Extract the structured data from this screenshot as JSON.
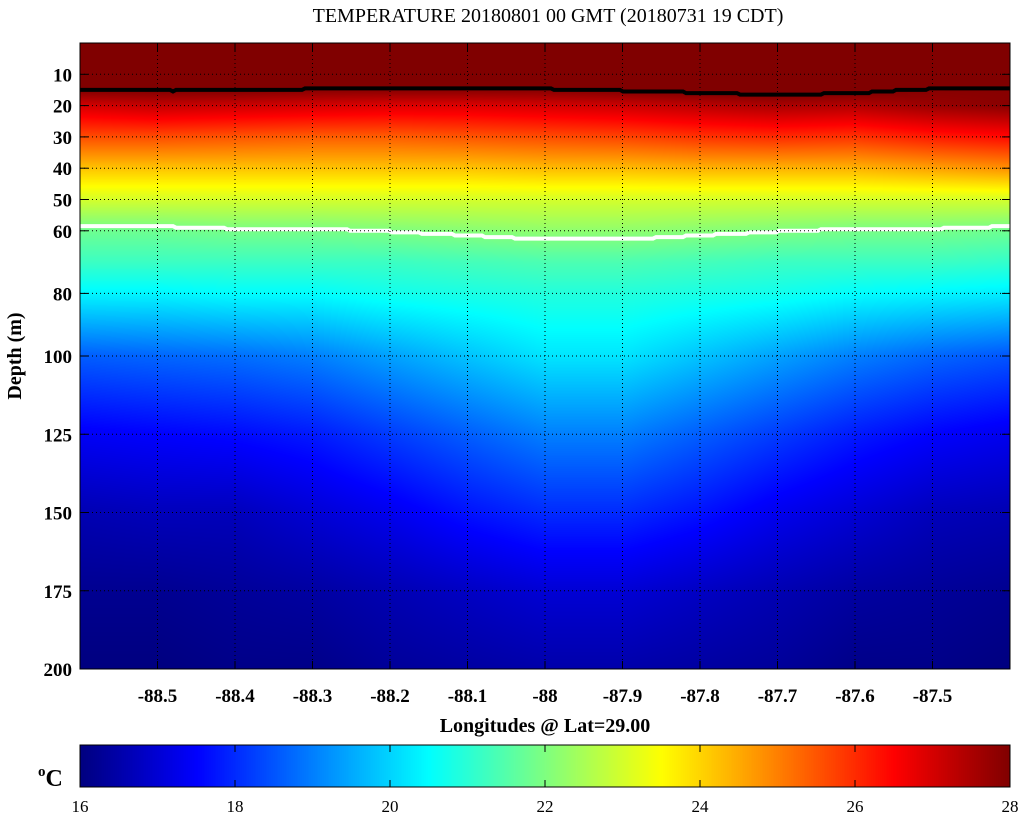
{
  "chart_data": {
    "type": "heatmap",
    "title": "TEMPERATURE 20180801 00 GMT (20180731 19 CDT)",
    "xlabel": "Longitudes @ Lat=29.00",
    "ylabel": "Depth (m)",
    "xlim": [
      -88.6,
      -87.4
    ],
    "ylim": [
      0,
      200
    ],
    "y_reversed": true,
    "grid": true,
    "xticks": [
      -88.5,
      -88.4,
      -88.3,
      -88.2,
      -88.1,
      -88,
      -87.9,
      -87.8,
      -87.7,
      -87.6,
      -87.5
    ],
    "xtick_labels": [
      "-88.5",
      "-88.4",
      "-88.3",
      "-88.2",
      "-88.1",
      "-88",
      "-87.9",
      "-87.8",
      "-87.7",
      "-87.6",
      "-87.5"
    ],
    "yticks": [
      10,
      20,
      30,
      40,
      50,
      60,
      80,
      100,
      125,
      150,
      175,
      200
    ],
    "ytick_labels": [
      "10",
      "20",
      "30",
      "40",
      "50",
      "60",
      "80",
      "100",
      "125",
      "150",
      "175",
      "200"
    ],
    "colormap": "jet",
    "colorbar": {
      "label_prefix": "o",
      "label": "C",
      "range": [
        16,
        28
      ],
      "ticks": [
        16,
        18,
        20,
        22,
        24,
        26,
        28
      ],
      "tick_labels": [
        "16",
        "18",
        "20",
        "22",
        "24",
        "26",
        "28"
      ],
      "placement": "bottom"
    },
    "contours": [
      {
        "level": 28,
        "color": "#000000"
      },
      {
        "level": 22,
        "color": "#ffffff"
      }
    ],
    "longitudes": [
      -88.6,
      -88.5,
      -88.4,
      -88.3,
      -88.2,
      -88.1,
      -88.0,
      -87.9,
      -87.8,
      -87.7,
      -87.6,
      -87.5,
      -87.4
    ],
    "depths": [
      0,
      10,
      15,
      20,
      30,
      40,
      50,
      60,
      70,
      80,
      100,
      125,
      150,
      175,
      200
    ],
    "temperature": [
      [
        29.2,
        29.2,
        29.2,
        29.2,
        29.2,
        29.2,
        29.2,
        29.2,
        29.2,
        29.2,
        29.2,
        29.2,
        29.2
      ],
      [
        28.8,
        28.8,
        28.8,
        28.8,
        28.8,
        28.8,
        28.8,
        28.8,
        28.8,
        28.8,
        28.8,
        28.8,
        28.8
      ],
      [
        28.0,
        28.0,
        28.0,
        27.9,
        27.9,
        27.9,
        27.9,
        28.0,
        28.1,
        28.2,
        28.1,
        27.9,
        27.9
      ],
      [
        27.0,
        27.2,
        27.1,
        27.0,
        26.9,
        26.9,
        27.0,
        27.1,
        27.3,
        27.5,
        27.4,
        27.7,
        27.9
      ],
      [
        25.6,
        25.6,
        25.5,
        25.4,
        25.4,
        25.5,
        25.6,
        25.7,
        25.9,
        26.0,
        25.9,
        26.2,
        26.4
      ],
      [
        24.2,
        24.2,
        24.2,
        24.2,
        24.2,
        24.2,
        24.3,
        24.3,
        24.4,
        24.4,
        24.4,
        24.6,
        24.8
      ],
      [
        23.0,
        23.0,
        23.0,
        23.0,
        23.0,
        23.0,
        23.0,
        23.0,
        23.0,
        23.0,
        23.0,
        23.0,
        23.0
      ],
      [
        21.8,
        21.8,
        21.9,
        21.9,
        22.0,
        22.1,
        22.2,
        22.2,
        22.1,
        22.0,
        21.9,
        21.9,
        21.8
      ],
      [
        21.2,
        21.2,
        21.2,
        21.2,
        21.2,
        21.3,
        21.4,
        21.4,
        21.3,
        21.2,
        21.2,
        21.2,
        21.1
      ],
      [
        20.4,
        20.4,
        20.5,
        20.5,
        20.7,
        20.8,
        20.9,
        20.9,
        20.8,
        20.7,
        20.5,
        20.4,
        20.3
      ],
      [
        18.6,
        18.7,
        18.8,
        19.0,
        19.4,
        19.8,
        20.2,
        20.2,
        19.8,
        19.4,
        19.0,
        18.7,
        18.5
      ],
      [
        17.4,
        17.5,
        17.6,
        17.8,
        18.2,
        18.6,
        19.0,
        19.0,
        18.6,
        18.2,
        17.8,
        17.5,
        17.3
      ],
      [
        16.6,
        16.7,
        16.7,
        17.0,
        17.3,
        17.7,
        18.0,
        18.0,
        17.7,
        17.3,
        17.0,
        16.7,
        16.6
      ],
      [
        16.2,
        16.2,
        16.3,
        16.4,
        16.6,
        16.8,
        17.0,
        17.0,
        16.8,
        16.6,
        16.4,
        16.3,
        16.2
      ],
      [
        16.0,
        16.0,
        16.1,
        16.1,
        16.3,
        16.4,
        16.5,
        16.5,
        16.4,
        16.3,
        16.1,
        16.1,
        16.0
      ]
    ]
  }
}
